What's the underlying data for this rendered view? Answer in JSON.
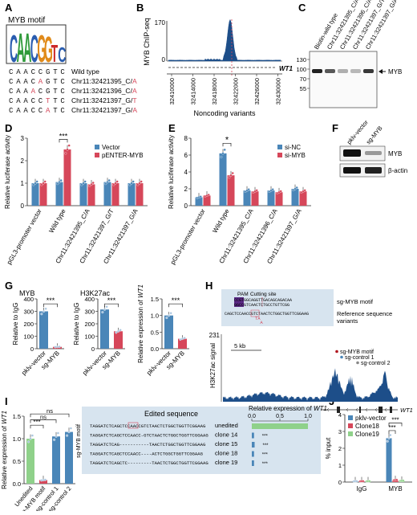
{
  "colors": {
    "blue": "#4a86b8",
    "red": "#d6475a",
    "lightblue": "#a8c4de",
    "pink": "#e8a0aa",
    "green": "#8fd18a",
    "darkred": "#b0161e",
    "grey": "#888888",
    "peak": "#1d4e89",
    "logoC": "#2a5db0",
    "logoA": "#2f9a3a",
    "logoG": "#e08a1a",
    "logoT": "#cc2a2a",
    "panelbg": "#d7e4ef",
    "highlight": "#b93a9a"
  },
  "panels": {
    "A": "A",
    "B": "B",
    "C": "C",
    "D": "D",
    "E": "E",
    "F": "F",
    "G": "G",
    "H": "H",
    "I": "I",
    "J": "J"
  },
  "panelA": {
    "title": "MYB motif",
    "logo": "CAACGGTC",
    "rows": [
      {
        "seq": [
          "C",
          "A",
          "A",
          "C",
          "C",
          "G",
          "T",
          "C"
        ],
        "mut": -1,
        "label": "Wild type",
        "allele": ""
      },
      {
        "seq": [
          "C",
          "A",
          "A",
          "C",
          "A",
          "G",
          "T",
          "C"
        ],
        "mut": 4,
        "label": "Chr11:32421395_C/",
        "allele": "A"
      },
      {
        "seq": [
          "C",
          "A",
          "A",
          "A",
          "C",
          "G",
          "T",
          "C"
        ],
        "mut": 3,
        "label": "Chr11:32421396_C/",
        "allele": "A"
      },
      {
        "seq": [
          "C",
          "A",
          "A",
          "C",
          "C",
          "T",
          "T",
          "C"
        ],
        "mut": 5,
        "label": "Chr11:32421397_G/",
        "allele": "T"
      },
      {
        "seq": [
          "C",
          "A",
          "A",
          "C",
          "C",
          "A",
          "T",
          "C"
        ],
        "mut": 5,
        "label": "Chr11:32421397_G/",
        "allele": "A"
      }
    ]
  },
  "panelB": {
    "ylabel": "MYB ChIP-seq",
    "ymax": "170",
    "ymin": "0",
    "gene": "WT1",
    "xticks": [
      "32410000",
      "32414000",
      "32418000",
      "32422000",
      "32426000",
      "32430000"
    ],
    "xlabel": "Noncoding variants"
  },
  "panelC": {
    "columns": [
      "Biotin-wild type",
      "Chr11:32421395_C/A",
      "Chr11:32421396_C/A",
      "Chr11:32421397_G/T",
      "Chr11:32421397_G/A"
    ],
    "markers": [
      "130",
      "100",
      "70",
      "55"
    ],
    "band_label": "MYB"
  },
  "chart_data": [
    {
      "type": "bar",
      "panel": "D",
      "ylabel": "Relative luciferase activity",
      "ylim": [
        0,
        3
      ],
      "yticks": [
        "0",
        "1",
        "2",
        "3"
      ],
      "categories": [
        "pGL3-promoter vector",
        "Wild type",
        "Chr11:32421395_C/A",
        "Chr11:32421397_G/T",
        "Chr11:32421397_G/A"
      ],
      "series": [
        {
          "name": "Vector",
          "values": [
            1.0,
            1.05,
            1.0,
            1.05,
            1.0
          ]
        },
        {
          "name": "pENTER-MYB",
          "values": [
            1.0,
            2.5,
            0.95,
            1.0,
            1.0
          ]
        }
      ],
      "significance": "***"
    },
    {
      "type": "bar",
      "panel": "E",
      "ylabel": "Relative luciferase activity",
      "ylim": [
        0,
        8
      ],
      "yticks": [
        "0",
        "2",
        "4",
        "6",
        "8"
      ],
      "categories": [
        "pGL3-promoter vector",
        "Wild type",
        "Chr11:32421395_C/A",
        "Chr11:32421396_C/A",
        "Chr11:32421397_G/A"
      ],
      "series": [
        {
          "name": "si-NC",
          "values": [
            1.0,
            6.2,
            1.8,
            1.8,
            2.0
          ]
        },
        {
          "name": "si-MYB",
          "values": [
            1.2,
            3.6,
            1.7,
            1.6,
            1.7
          ]
        }
      ],
      "significance": "*"
    },
    {
      "type": "bar",
      "panel": "G1",
      "title": "MYB",
      "ylabel": "Relative to IgG",
      "ylim": [
        0,
        400
      ],
      "yticks": [
        "0",
        "100",
        "200",
        "300",
        "400"
      ],
      "categories": [
        "pklv-vector",
        "sg-MYB"
      ],
      "values": [
        300,
        15
      ],
      "significance": "***"
    },
    {
      "type": "bar",
      "panel": "G2",
      "title": "H3K27ac",
      "ylabel": "Relative to IgG",
      "ylim": [
        0,
        400
      ],
      "yticks": [
        "0",
        "100",
        "200",
        "300",
        "400"
      ],
      "categories": [
        "pklv-vector",
        "sg-MYB"
      ],
      "values": [
        315,
        140
      ],
      "significance": "***"
    },
    {
      "type": "bar",
      "panel": "G3",
      "ylabel": "Relative expression of WT1",
      "ylim": [
        0,
        1.5
      ],
      "yticks": [
        "0.0",
        "0.5",
        "1.0",
        "1.5"
      ],
      "categories": [
        "pklv-vector",
        "sg-MYB"
      ],
      "values": [
        1.0,
        0.3
      ],
      "significance": "***"
    },
    {
      "type": "bar",
      "panel": "I",
      "ylabel": "Relative expression of WT1",
      "ylim": [
        0,
        1.5
      ],
      "yticks": [
        "0.0",
        "0.5",
        "1.0",
        "1.5"
      ],
      "categories": [
        "Unedited",
        "sg-MYB motif",
        "sg-control 1",
        "sg-control 2"
      ],
      "values": [
        1.0,
        0.08,
        1.05,
        1.15
      ],
      "significance": [
        "***",
        "ns",
        "ns"
      ]
    },
    {
      "type": "bar",
      "panel": "I-clones",
      "title": "Relative expression of WT1",
      "xlim": [
        0,
        1
      ],
      "xticks": [
        "0.0",
        "0.5",
        "1.0"
      ],
      "categories": [
        "unedited",
        "clone 14",
        "clone 15",
        "clone 18",
        "clone 19"
      ],
      "values": [
        1.0,
        0.04,
        0.05,
        0.04,
        0.04
      ],
      "significance": "***"
    },
    {
      "type": "bar",
      "panel": "J",
      "ylabel": "% input",
      "ylim": [
        0,
        4
      ],
      "yticks": [
        "0",
        "1",
        "2",
        "3",
        "4"
      ],
      "categories": [
        "IgG",
        "MYB"
      ],
      "series": [
        {
          "name": "pklv-vector",
          "values": [
            0.05,
            2.6
          ]
        },
        {
          "name": "Clone18",
          "values": [
            0.05,
            0.12
          ]
        },
        {
          "name": "Clone19",
          "values": [
            0.05,
            0.08
          ]
        }
      ],
      "significance": "***"
    }
  ],
  "panelF": {
    "columns": [
      "pklv-vector",
      "sg-MYB"
    ],
    "bands": [
      "MYB",
      "β-actin"
    ]
  },
  "panelH": {
    "pam": "PAM",
    "cutting": "Cutting site",
    "motif_label": "sg-MYB motif",
    "ref_label": "Reference sequence",
    "var_label": "variants",
    "seq_top": "CCGTGGCAGGTTGACAGCAGACAA",
    "seq_top2": "GGCCGTCAACTCTGCCTGTTCGG",
    "ref_seq": "CAGCTCCAACCGTCTAACTCTGGCTGGTTCGGAAG",
    "var_chars": [
      "T",
      "A",
      "A"
    ],
    "ylabel": "H3K27ac signal",
    "ymax": "231",
    "scale": "5 kb",
    "legend": [
      "sg-MYB motif",
      "sg-control 1",
      "sg-control 2"
    ],
    "gene": "WT1"
  },
  "panelI": {
    "edited_title": "Edited sequence",
    "expr_title": "Relative expression of WT1",
    "side_label": "sg-MYB motif",
    "sequences": [
      {
        "seq": "TAGGATCTCAGCTCCAACCGTCTAACTCTGGCTGGTTCGGAAG",
        "label": "unedited"
      },
      {
        "seq": "TAGGATCTCAGCTCCAACC-GTCTAACTCTGGCTGGTTCGGAAG",
        "label": "clone 14"
      },
      {
        "seq": "TAGGATCTCAG-----------TAACTCTGGCTGGTTCGGAAG",
        "label": "clone 15"
      },
      {
        "seq": "TAGGATCTCAGCTCCAACC----ACTCTGGCTGGTTCGGAAG",
        "label": "clone 18"
      },
      {
        "seq": "TAGGATCTCAGCTC---------TAACTCTGGCTGGTTCGGAAG",
        "label": "clone 19"
      }
    ]
  }
}
